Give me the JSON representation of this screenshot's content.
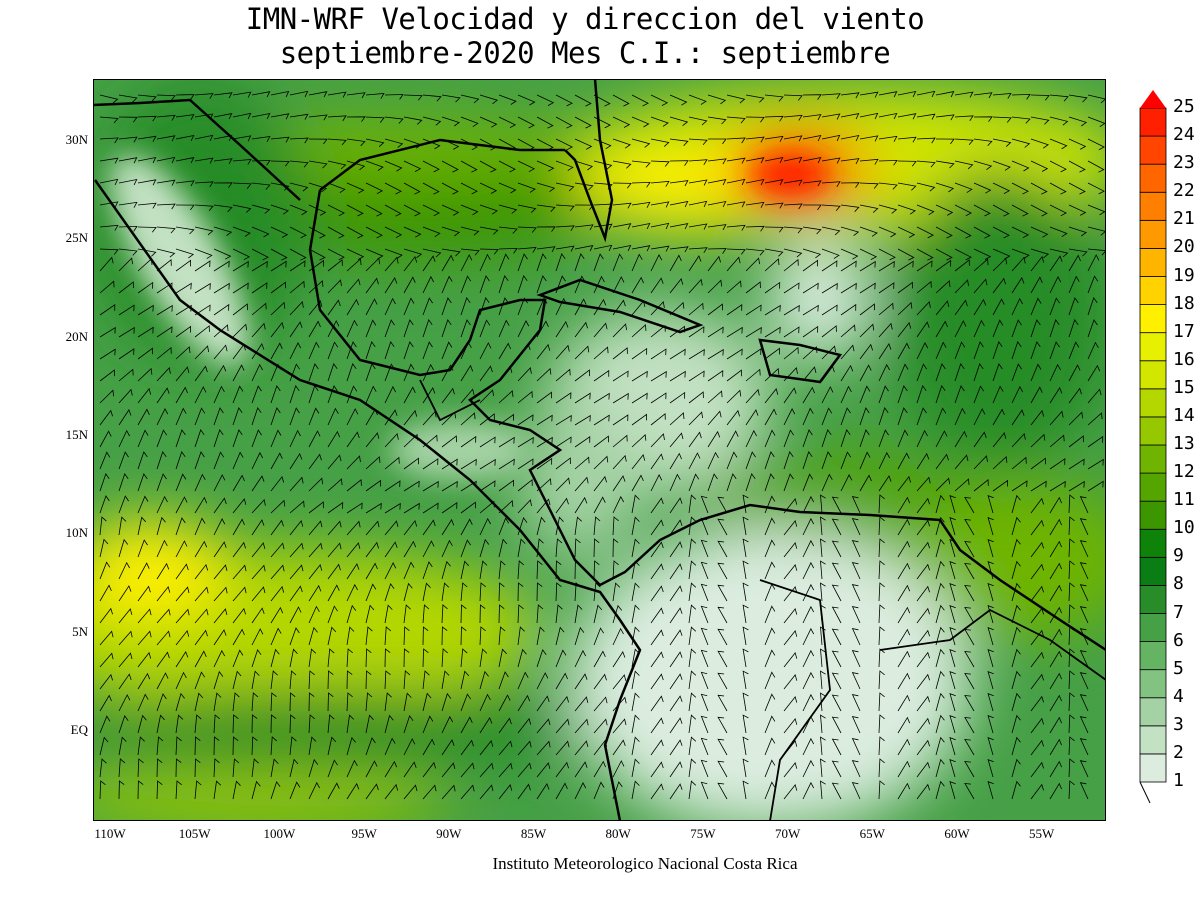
{
  "title": {
    "line1": "IMN-WRF Velocidad y direccion del viento",
    "line2": "septiembre-2020 Mes C.I.: septiembre"
  },
  "axes": {
    "lat_labels": [
      "30N",
      "25N",
      "20N",
      "15N",
      "10N",
      "5N",
      "EQ"
    ],
    "lon_labels": [
      "110W",
      "105W",
      "100W",
      "95W",
      "90W",
      "85W",
      "80W",
      "75W",
      "70W",
      "65W",
      "60W",
      "55W"
    ]
  },
  "colorbar": {
    "labels": [
      "1",
      "2",
      "3",
      "4",
      "5",
      "6",
      "7",
      "8",
      "9",
      "10",
      "11",
      "12",
      "13",
      "14",
      "15",
      "16",
      "17",
      "18",
      "19",
      "20",
      "21",
      "22",
      "23",
      "24",
      "25"
    ],
    "colors": [
      "#dcede0",
      "#c3e1c3",
      "#a5d2a5",
      "#82c382",
      "#64b464",
      "#46a046",
      "#288c28",
      "#0a7d14",
      "#0f820a",
      "#3c9600",
      "#55a500",
      "#6eb400",
      "#96c800",
      "#b4d700",
      "#d2e600",
      "#e6f000",
      "#fff000",
      "#ffd200",
      "#ffb400",
      "#ff9900",
      "#ff7f00",
      "#ff6600",
      "#ff4500",
      "#ff2000"
    ],
    "over_color": "#ff0000"
  },
  "credit": "Instituto Meteorologico Nacional Costa Rica"
}
